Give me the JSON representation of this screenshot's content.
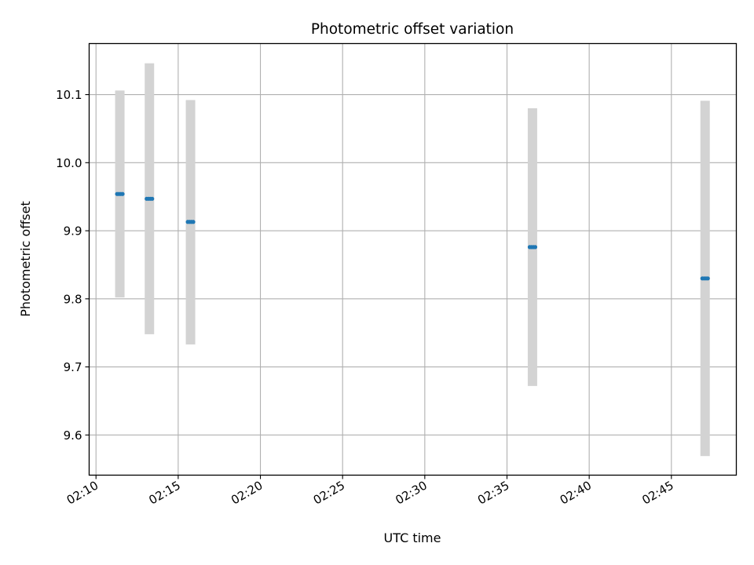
{
  "chart_data": {
    "type": "scatter",
    "title": "Photometric offset variation",
    "xlabel": "UTC time",
    "ylabel": "Photometric offset",
    "x_ticks": [
      "02:10",
      "02:15",
      "02:20",
      "02:25",
      "02:30",
      "02:35",
      "02:40",
      "02:45"
    ],
    "y_ticks": [
      "9.6",
      "9.7",
      "9.8",
      "9.9",
      "10.0",
      "10.1"
    ],
    "xlim": [
      "02:09:35",
      "02:48:57"
    ],
    "ylim": [
      9.541,
      10.175
    ],
    "grid": true,
    "colors": {
      "point": "#1f77b4",
      "error_bar": "#d3d3d3",
      "grid": "#b0b0b0"
    },
    "groups": [
      {
        "x_start": "02:11:17",
        "x_end": "02:11:37",
        "y": 9.954,
        "err_low": 9.802,
        "err_high": 10.106
      },
      {
        "x_start": "02:13:05",
        "x_end": "02:13:25",
        "y": 9.947,
        "err_low": 9.748,
        "err_high": 10.146
      },
      {
        "x_start": "02:15:35",
        "x_end": "02:15:55",
        "y": 9.913,
        "err_low": 9.733,
        "err_high": 10.092
      },
      {
        "x_start": "02:36:23",
        "x_end": "02:36:43",
        "y": 9.876,
        "err_low": 9.672,
        "err_high": 10.08
      },
      {
        "x_start": "02:46:53",
        "x_end": "02:47:13",
        "y": 9.83,
        "err_low": 9.569,
        "err_high": 10.091
      }
    ]
  }
}
